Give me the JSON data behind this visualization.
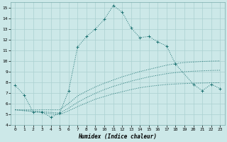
{
  "xlabel": "Humidex (Indice chaleur)",
  "bg_color": "#cce8e8",
  "grid_color": "#aad0d0",
  "line_color": "#1a7070",
  "xlim": [
    -0.5,
    23.5
  ],
  "ylim": [
    4,
    15.5
  ],
  "xticks": [
    0,
    1,
    2,
    3,
    4,
    5,
    6,
    7,
    8,
    9,
    10,
    11,
    12,
    13,
    14,
    15,
    16,
    17,
    18,
    19,
    20,
    21,
    22,
    23
  ],
  "yticks": [
    4,
    5,
    6,
    7,
    8,
    9,
    10,
    11,
    12,
    13,
    14,
    15
  ],
  "s1x": [
    0,
    1,
    2,
    3,
    4,
    5,
    6,
    7,
    8,
    9,
    10,
    11,
    12,
    13,
    14,
    15,
    16,
    17,
    18
  ],
  "s1y": [
    7.7,
    6.8,
    5.2,
    5.2,
    4.7,
    5.1,
    7.2,
    11.3,
    12.3,
    13.0,
    13.9,
    15.2,
    14.6,
    13.1,
    12.2,
    12.3,
    11.8,
    11.4,
    9.7
  ],
  "s5x": [
    18,
    20,
    21,
    22,
    23
  ],
  "s5y": [
    9.7,
    7.8,
    7.2,
    7.8,
    7.4
  ],
  "s2x": [
    0,
    5,
    6,
    7,
    8,
    9,
    10,
    11,
    12,
    13,
    14,
    15,
    16,
    17,
    18,
    19,
    20,
    21,
    22,
    23
  ],
  "s2y": [
    5.4,
    5.4,
    6.0,
    6.7,
    7.15,
    7.55,
    7.9,
    8.2,
    8.5,
    8.75,
    9.0,
    9.2,
    9.4,
    9.6,
    9.75,
    9.85,
    9.9,
    9.95,
    9.98,
    10.0
  ],
  "s3x": [
    0,
    5,
    6,
    7,
    8,
    9,
    10,
    11,
    12,
    13,
    14,
    15,
    16,
    17,
    18,
    19,
    20,
    21,
    22,
    23
  ],
  "s3y": [
    5.4,
    5.1,
    5.55,
    6.1,
    6.55,
    6.95,
    7.3,
    7.6,
    7.85,
    8.1,
    8.3,
    8.5,
    8.65,
    8.8,
    8.9,
    8.98,
    9.03,
    9.07,
    9.1,
    9.12
  ],
  "s4x": [
    0,
    5,
    6,
    7,
    8,
    9,
    10,
    11,
    12,
    13,
    14,
    15,
    16,
    17,
    18,
    19,
    20,
    21,
    22,
    23
  ],
  "s4y": [
    5.4,
    4.95,
    5.3,
    5.7,
    6.05,
    6.4,
    6.65,
    6.9,
    7.1,
    7.3,
    7.48,
    7.6,
    7.7,
    7.78,
    7.83,
    7.87,
    7.9,
    7.92,
    7.94,
    7.95
  ]
}
